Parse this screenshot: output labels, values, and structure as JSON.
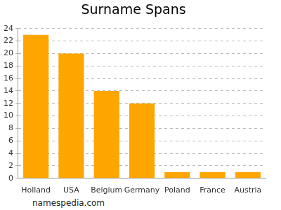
{
  "chart_data": {
    "type": "bar",
    "title": "Surname Spans",
    "categories": [
      "Holland",
      "USA",
      "Belgium",
      "Germany",
      "Poland",
      "France",
      "Austria"
    ],
    "values": [
      23,
      20,
      14,
      12,
      1,
      1,
      1
    ],
    "color": "#ffa500",
    "ylim": [
      0,
      24
    ],
    "yticks": [
      0,
      2,
      4,
      6,
      8,
      10,
      12,
      14,
      16,
      18,
      20,
      22,
      24
    ],
    "grid": true,
    "annotations": [
      "namespedia.com"
    ]
  }
}
